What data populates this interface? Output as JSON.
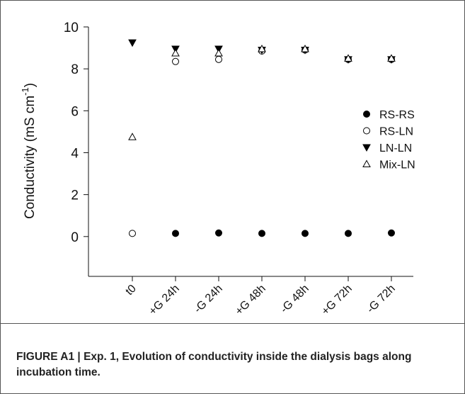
{
  "chart_data": {
    "type": "scatter",
    "y_label": "Conductivity (mS cm",
    "y_label_sup": "-1",
    "y_label_end": ")",
    "categories": [
      "t0",
      "+G 24h",
      "-G 24h",
      "+G 48h",
      "-G 48h",
      "+G 72h",
      "-G 72h"
    ],
    "series": [
      {
        "name": "RS-RS",
        "color": "#000000",
        "marker": "circle",
        "filled": true,
        "values": [
          null,
          0.15,
          0.17,
          0.15,
          0.15,
          0.15,
          0.17
        ]
      },
      {
        "name": "RS-LN",
        "color": "#000000",
        "marker": "circle",
        "filled": false,
        "values": [
          0.15,
          8.35,
          8.45,
          8.85,
          8.9,
          8.45,
          8.45
        ]
      },
      {
        "name": "LN-LN",
        "color": "#000000",
        "marker": "triangle-down",
        "filled": true,
        "values": [
          9.25,
          8.95,
          8.95,
          8.9,
          8.9,
          8.45,
          8.45
        ]
      },
      {
        "name": "Mix-LN",
        "color": "#000000",
        "marker": "triangle-up",
        "filled": false,
        "values": [
          4.75,
          8.75,
          8.75,
          8.95,
          8.95,
          8.5,
          8.5
        ]
      }
    ],
    "ylim": [
      -1.9,
      10
    ],
    "yticks": [
      0,
      2,
      4,
      6,
      8,
      10
    ],
    "legend": "right",
    "caption_label": "FIGURE A1 | ",
    "caption": "Exp. 1, Evolution of conductivity inside the dialysis bags along incubation time."
  }
}
